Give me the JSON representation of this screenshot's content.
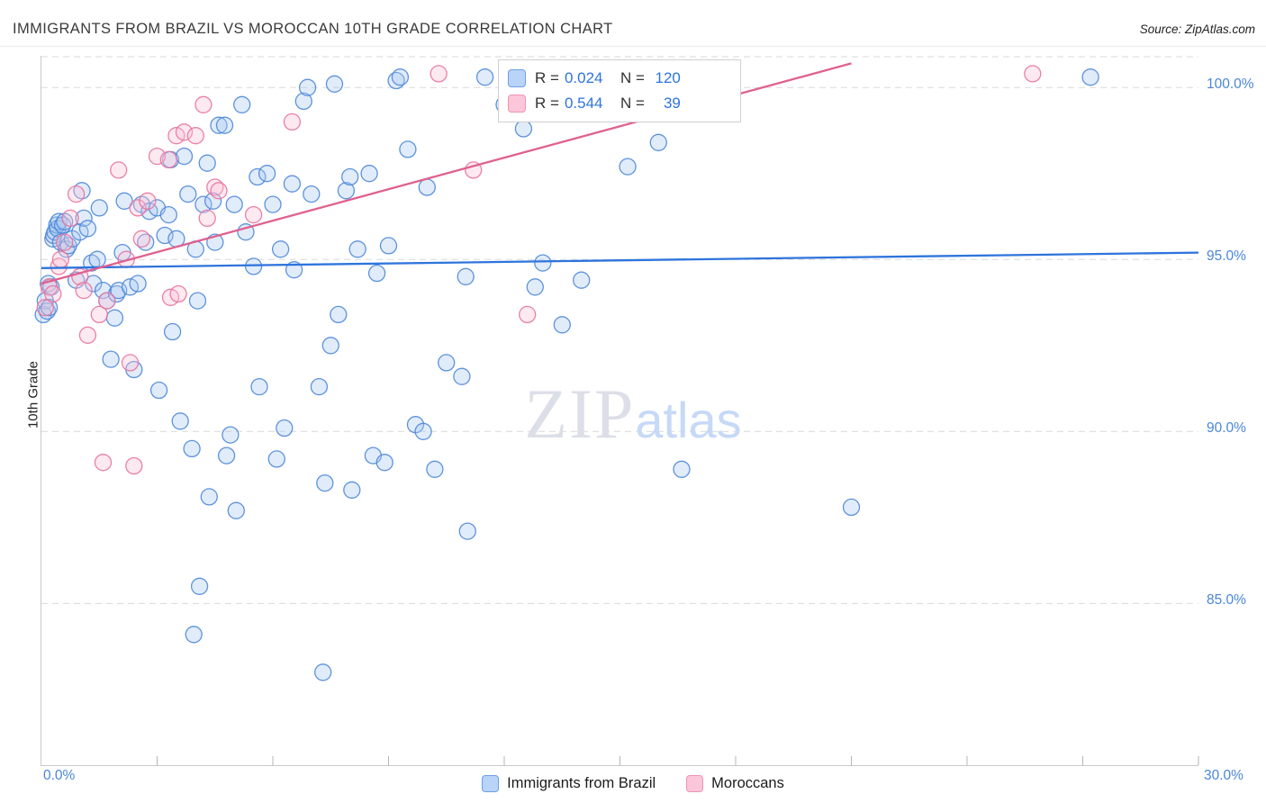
{
  "header": {
    "title": "IMMIGRANTS FROM BRAZIL VS MOROCCAN 10TH GRADE CORRELATION CHART",
    "source": "Source: ZipAtlas.com"
  },
  "legend_box": {
    "rows": [
      {
        "series": "Immigrants from Brazil",
        "r_label": "R =",
        "r_value": "0.024",
        "n_label": "N =",
        "n_value": "120"
      },
      {
        "series": "Moroccans",
        "r_label": "R =",
        "r_value": "0.544",
        "n_label": "N =",
        "n_value": "39"
      }
    ]
  },
  "y_axis": {
    "label": "10th Grade"
  },
  "x_axis": {
    "min_label": "0.0%",
    "max_label": "30.0%"
  },
  "watermark": {
    "part1": "ZIP",
    "part2": "atlas"
  },
  "bottom_legend": [
    {
      "label": "Immigrants from Brazil",
      "color": "#b9d4f8",
      "border": "#6ba0e8"
    },
    {
      "label": "Moroccans",
      "color": "#fbc6d9",
      "border": "#ef93b4"
    }
  ],
  "chart_data": {
    "type": "scatter",
    "title": "IMMIGRANTS FROM BRAZIL VS MOROCCAN 10TH GRADE CORRELATION CHART",
    "xlabel": "",
    "ylabel": "10th Grade",
    "xlim": [
      0,
      30
    ],
    "ylim": [
      80.3,
      100.92
    ],
    "yticks": [
      100,
      95,
      90,
      85
    ],
    "ytick_labels": [
      "100.0%",
      "95.0%",
      "90.0%",
      "85.0%"
    ],
    "xtick_labels": [
      "0.0%",
      "30.0%"
    ],
    "grid": "horizontal-dashed",
    "legend_position": "top-center",
    "series": [
      {
        "name": "Immigrants from Brazil",
        "R": 0.024,
        "N": 120,
        "color": "#4d87d9",
        "fill": "#a9c9f2",
        "points": [
          [
            0.05,
            93.4
          ],
          [
            0.1,
            93.8
          ],
          [
            0.15,
            93.5
          ],
          [
            0.18,
            94.3
          ],
          [
            0.2,
            93.6
          ],
          [
            0.25,
            94.2
          ],
          [
            0.3,
            95.6
          ],
          [
            0.32,
            95.7
          ],
          [
            0.35,
            95.8
          ],
          [
            0.4,
            96.0
          ],
          [
            0.42,
            95.9
          ],
          [
            0.45,
            96.1
          ],
          [
            0.5,
            95.5
          ],
          [
            0.55,
            96.0
          ],
          [
            0.6,
            96.1
          ],
          [
            0.65,
            95.3
          ],
          [
            0.7,
            95.4
          ],
          [
            0.8,
            95.6
          ],
          [
            0.9,
            94.4
          ],
          [
            1.0,
            95.8
          ],
          [
            1.05,
            97.0
          ],
          [
            1.1,
            96.2
          ],
          [
            1.2,
            95.9
          ],
          [
            1.3,
            94.9
          ],
          [
            1.35,
            94.3
          ],
          [
            1.45,
            95.0
          ],
          [
            1.5,
            96.5
          ],
          [
            1.6,
            94.1
          ],
          [
            1.7,
            93.8
          ],
          [
            1.8,
            92.1
          ],
          [
            1.9,
            93.3
          ],
          [
            1.95,
            94.0
          ],
          [
            2.0,
            94.1
          ],
          [
            2.1,
            95.2
          ],
          [
            2.15,
            96.7
          ],
          [
            2.3,
            94.2
          ],
          [
            2.4,
            91.8
          ],
          [
            2.5,
            94.3
          ],
          [
            2.6,
            96.6
          ],
          [
            2.7,
            95.5
          ],
          [
            2.8,
            96.4
          ],
          [
            3.0,
            96.5
          ],
          [
            3.05,
            91.2
          ],
          [
            3.2,
            95.7
          ],
          [
            3.3,
            96.3
          ],
          [
            3.35,
            97.9
          ],
          [
            3.4,
            92.9
          ],
          [
            3.5,
            95.6
          ],
          [
            3.6,
            90.3
          ],
          [
            3.7,
            98.0
          ],
          [
            3.8,
            96.9
          ],
          [
            3.9,
            89.5
          ],
          [
            3.95,
            84.1
          ],
          [
            4.0,
            95.3
          ],
          [
            4.05,
            93.8
          ],
          [
            4.1,
            85.5
          ],
          [
            4.2,
            96.6
          ],
          [
            4.3,
            97.8
          ],
          [
            4.35,
            88.1
          ],
          [
            4.45,
            96.7
          ],
          [
            4.5,
            95.5
          ],
          [
            4.6,
            98.9
          ],
          [
            4.75,
            98.9
          ],
          [
            4.8,
            89.3
          ],
          [
            4.9,
            89.9
          ],
          [
            5.0,
            96.6
          ],
          [
            5.05,
            87.7
          ],
          [
            5.2,
            99.5
          ],
          [
            5.3,
            95.8
          ],
          [
            5.5,
            94.8
          ],
          [
            5.6,
            97.4
          ],
          [
            5.65,
            91.3
          ],
          [
            5.85,
            97.5
          ],
          [
            6.0,
            96.6
          ],
          [
            6.1,
            89.2
          ],
          [
            6.2,
            95.3
          ],
          [
            6.3,
            90.1
          ],
          [
            6.5,
            97.2
          ],
          [
            6.55,
            94.7
          ],
          [
            6.8,
            99.6
          ],
          [
            6.9,
            100.0
          ],
          [
            7.0,
            96.9
          ],
          [
            7.2,
            91.3
          ],
          [
            7.3,
            83.0
          ],
          [
            7.35,
            88.5
          ],
          [
            7.5,
            92.5
          ],
          [
            7.6,
            100.1
          ],
          [
            7.7,
            93.4
          ],
          [
            7.9,
            97.0
          ],
          [
            8.0,
            97.4
          ],
          [
            8.05,
            88.3
          ],
          [
            8.2,
            95.3
          ],
          [
            8.5,
            97.5
          ],
          [
            8.6,
            89.3
          ],
          [
            8.7,
            94.6
          ],
          [
            8.9,
            89.1
          ],
          [
            9.0,
            95.4
          ],
          [
            9.2,
            100.2
          ],
          [
            9.3,
            100.3
          ],
          [
            9.5,
            98.2
          ],
          [
            9.7,
            90.2
          ],
          [
            9.9,
            90.0
          ],
          [
            10.0,
            97.1
          ],
          [
            10.2,
            88.9
          ],
          [
            10.5,
            92.0
          ],
          [
            10.9,
            91.6
          ],
          [
            11.0,
            94.5
          ],
          [
            11.05,
            87.1
          ],
          [
            11.5,
            100.3
          ],
          [
            12.0,
            99.5
          ],
          [
            12.5,
            98.8
          ],
          [
            12.8,
            94.2
          ],
          [
            13.0,
            94.9
          ],
          [
            13.5,
            93.1
          ],
          [
            14.0,
            94.4
          ],
          [
            15.2,
            97.7
          ],
          [
            16.0,
            98.4
          ],
          [
            16.6,
            88.9
          ],
          [
            21.0,
            87.8
          ],
          [
            27.2,
            100.3
          ]
        ]
      },
      {
        "name": "Moroccans",
        "R": 0.544,
        "N": 39,
        "color": "#e8739f",
        "fill": "#f9bfd4",
        "points": [
          [
            0.1,
            93.6
          ],
          [
            0.2,
            94.2
          ],
          [
            0.3,
            94.0
          ],
          [
            0.45,
            94.8
          ],
          [
            0.5,
            95.0
          ],
          [
            0.6,
            95.5
          ],
          [
            0.75,
            96.2
          ],
          [
            0.9,
            96.9
          ],
          [
            1.0,
            94.5
          ],
          [
            1.1,
            94.1
          ],
          [
            1.2,
            92.8
          ],
          [
            1.5,
            93.4
          ],
          [
            1.6,
            89.1
          ],
          [
            1.7,
            93.8
          ],
          [
            2.0,
            97.6
          ],
          [
            2.2,
            95.0
          ],
          [
            2.3,
            92.0
          ],
          [
            2.4,
            89.0
          ],
          [
            2.5,
            96.5
          ],
          [
            2.6,
            95.6
          ],
          [
            2.75,
            96.7
          ],
          [
            3.0,
            98.0
          ],
          [
            3.3,
            97.9
          ],
          [
            3.35,
            93.9
          ],
          [
            3.5,
            98.6
          ],
          [
            3.55,
            94.0
          ],
          [
            3.7,
            98.7
          ],
          [
            4.0,
            98.6
          ],
          [
            4.2,
            99.5
          ],
          [
            4.3,
            96.2
          ],
          [
            4.5,
            97.1
          ],
          [
            4.6,
            97.0
          ],
          [
            5.5,
            96.3
          ],
          [
            6.5,
            99.0
          ],
          [
            10.3,
            100.4
          ],
          [
            11.2,
            97.6
          ],
          [
            12.6,
            93.4
          ],
          [
            15.8,
            100.4
          ],
          [
            25.7,
            100.4
          ]
        ]
      }
    ],
    "trend_lines": [
      {
        "series": "Immigrants from Brazil",
        "color": "#2e74dd",
        "start": [
          0,
          94.75
        ],
        "end": [
          30,
          95.2
        ]
      },
      {
        "series": "Moroccans",
        "color": "#e0608e",
        "start": [
          0,
          94.3
        ],
        "end": [
          21,
          100.7
        ]
      }
    ]
  }
}
